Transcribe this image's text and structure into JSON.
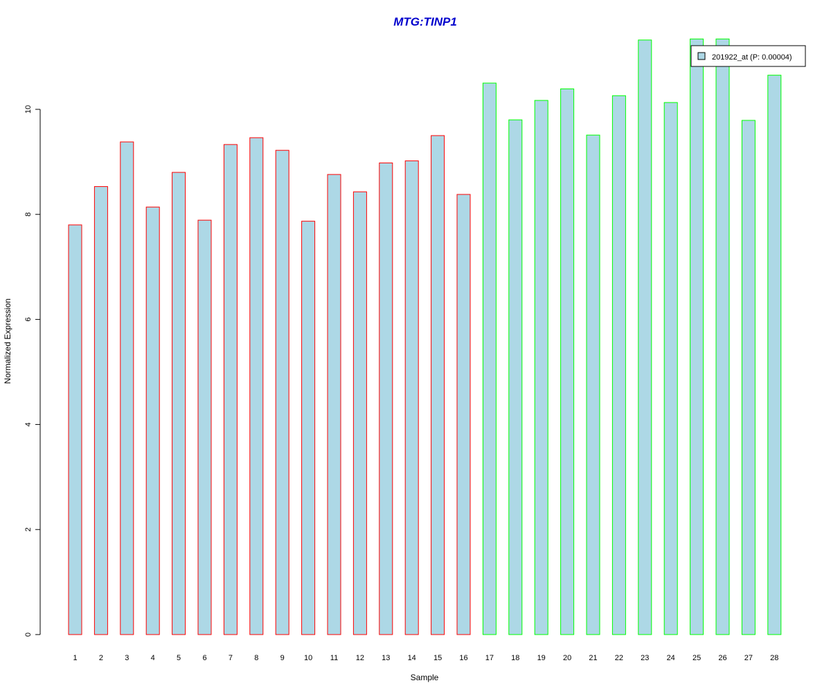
{
  "chart_data": {
    "type": "bar",
    "title": "MTG:TINP1",
    "xlabel": "Sample",
    "ylabel": "Normalized Expression",
    "categories": [
      "1",
      "2",
      "3",
      "4",
      "5",
      "6",
      "7",
      "8",
      "9",
      "10",
      "11",
      "12",
      "13",
      "14",
      "15",
      "16",
      "17",
      "18",
      "19",
      "20",
      "21",
      "22",
      "23",
      "24",
      "25",
      "26",
      "27",
      "28"
    ],
    "values": [
      7.8,
      8.53,
      9.38,
      8.14,
      8.8,
      7.89,
      9.33,
      9.46,
      9.22,
      7.87,
      8.76,
      8.43,
      8.98,
      9.02,
      9.5,
      8.38,
      10.5,
      9.8,
      10.17,
      10.39,
      9.51,
      10.26,
      11.32,
      10.13,
      11.34,
      11.34,
      9.79,
      10.65
    ],
    "groups": [
      1,
      1,
      1,
      1,
      1,
      1,
      1,
      1,
      1,
      1,
      1,
      1,
      1,
      1,
      1,
      1,
      2,
      2,
      2,
      2,
      2,
      2,
      2,
      2,
      2,
      2,
      2,
      2
    ],
    "yticks": [
      0,
      2,
      4,
      6,
      8,
      10
    ],
    "ylim": [
      0,
      11.3
    ],
    "grid": false,
    "legend": {
      "position": "top-right",
      "label": "201922_at (P: 0.00004)"
    },
    "colors": {
      "bar_fill": "#add8e6",
      "group1_border": "#ff0000",
      "group2_border": "#00ff00",
      "title": "#0000cd",
      "axis": "#000000"
    }
  }
}
